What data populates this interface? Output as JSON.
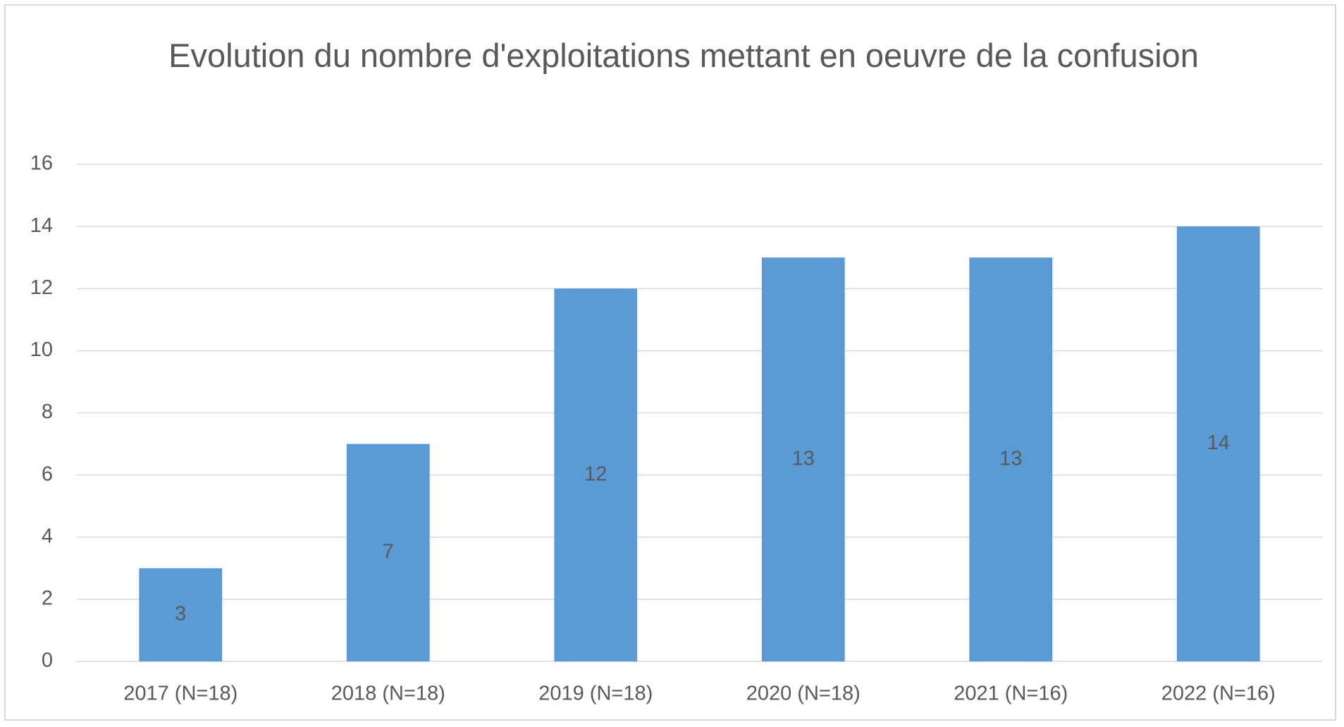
{
  "chart_data": {
    "type": "bar",
    "title": "Evolution du nombre d'exploitations mettant en oeuvre de la confusion",
    "categories": [
      "2017 (N=18)",
      "2018 (N=18)",
      "2019 (N=18)",
      "2020 (N=18)",
      "2021 (N=16)",
      "2022 (N=16)"
    ],
    "values": [
      3,
      7,
      12,
      13,
      13,
      14
    ],
    "color": "#5b9bd5",
    "ylim": [
      0,
      16
    ],
    "yticks": [
      0,
      2,
      4,
      6,
      8,
      10,
      12,
      14,
      16
    ],
    "grid": true
  }
}
